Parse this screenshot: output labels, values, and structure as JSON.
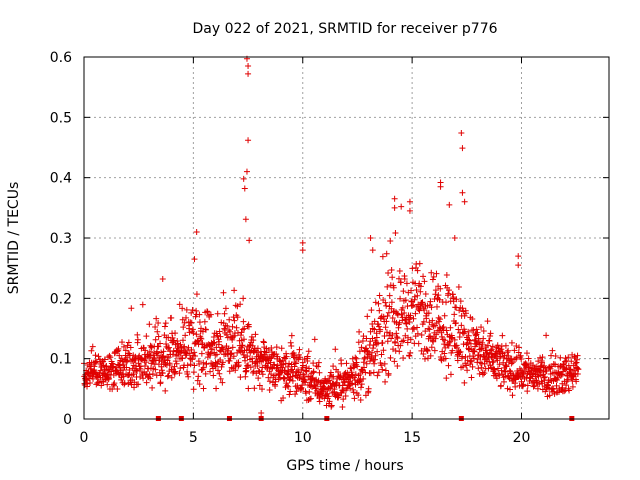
{
  "chart_data": {
    "type": "scatter",
    "title": "Day 022 of 2021, SRMTID for receiver p776",
    "xlabel": "GPS time / hours",
    "ylabel": "SRMTID / TECUs",
    "xlim": [
      0,
      24
    ],
    "ylim": [
      0,
      0.6
    ],
    "xticks": [
      0,
      5,
      10,
      15,
      20
    ],
    "yticks": [
      0,
      0.1,
      0.2,
      0.3,
      0.4,
      0.5,
      0.6
    ],
    "xtick_labels": [
      "0",
      "5",
      "10",
      "15",
      "20"
    ],
    "ytick_labels": [
      "0",
      "0.1",
      "0.2",
      "0.3",
      "0.4",
      "0.5",
      "0.6"
    ],
    "grid": true,
    "marker": "plus",
    "color": "#e00000",
    "envelope": {
      "description": "approximate hourly mean of SRMTID and spread (TECU), samples every ~30 s",
      "hours": [
        0,
        1,
        2,
        3,
        4,
        5,
        6,
        7,
        8,
        9,
        10,
        11,
        12,
        13,
        14,
        15,
        16,
        17,
        18,
        19,
        20,
        21,
        22,
        22.6
      ],
      "mean": [
        0.07,
        0.08,
        0.09,
        0.1,
        0.11,
        0.13,
        0.12,
        0.14,
        0.09,
        0.08,
        0.07,
        0.05,
        0.06,
        0.1,
        0.16,
        0.18,
        0.17,
        0.15,
        0.11,
        0.09,
        0.08,
        0.07,
        0.07,
        0.09
      ],
      "spread": [
        0.03,
        0.03,
        0.04,
        0.05,
        0.05,
        0.07,
        0.06,
        0.09,
        0.04,
        0.04,
        0.04,
        0.03,
        0.03,
        0.06,
        0.08,
        0.08,
        0.08,
        0.08,
        0.05,
        0.04,
        0.04,
        0.03,
        0.03,
        0.03
      ]
    },
    "peaks": [
      {
        "x": 7.45,
        "y": 0.597
      },
      {
        "x": 7.5,
        "y": 0.585
      },
      {
        "x": 7.5,
        "y": 0.572
      },
      {
        "x": 7.5,
        "y": 0.462
      },
      {
        "x": 7.45,
        "y": 0.41
      },
      {
        "x": 7.3,
        "y": 0.398
      },
      {
        "x": 7.35,
        "y": 0.382
      },
      {
        "x": 7.4,
        "y": 0.331
      },
      {
        "x": 7.55,
        "y": 0.296
      },
      {
        "x": 5.15,
        "y": 0.31
      },
      {
        "x": 5.05,
        "y": 0.265
      },
      {
        "x": 10.0,
        "y": 0.292
      },
      {
        "x": 10.0,
        "y": 0.28
      },
      {
        "x": 14.2,
        "y": 0.365
      },
      {
        "x": 14.2,
        "y": 0.35
      },
      {
        "x": 14.9,
        "y": 0.36
      },
      {
        "x": 14.9,
        "y": 0.345
      },
      {
        "x": 16.3,
        "y": 0.392
      },
      {
        "x": 16.3,
        "y": 0.385
      },
      {
        "x": 16.7,
        "y": 0.355
      },
      {
        "x": 17.25,
        "y": 0.474
      },
      {
        "x": 17.3,
        "y": 0.449
      },
      {
        "x": 17.3,
        "y": 0.375
      },
      {
        "x": 17.4,
        "y": 0.36
      },
      {
        "x": 16.95,
        "y": 0.3
      },
      {
        "x": 19.85,
        "y": 0.27
      },
      {
        "x": 19.85,
        "y": 0.255
      },
      {
        "x": 13.1,
        "y": 0.3
      },
      {
        "x": 13.2,
        "y": 0.28
      },
      {
        "x": 3.6,
        "y": 0.232
      },
      {
        "x": 8.1,
        "y": 0.01
      }
    ],
    "gap_markers_x": [
      3.4,
      4.45,
      6.65,
      8.1,
      11.1,
      17.25,
      22.3
    ]
  }
}
